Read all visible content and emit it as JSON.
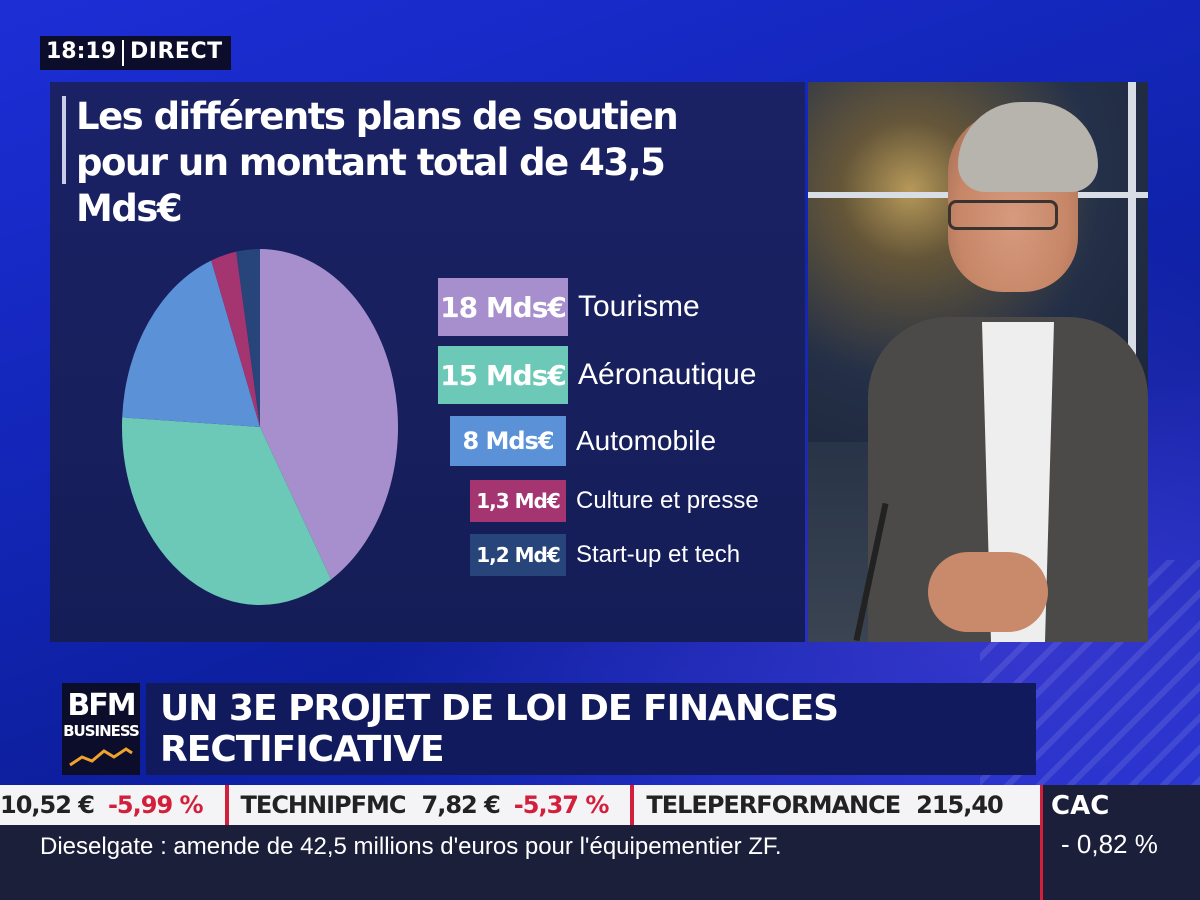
{
  "broadcast": {
    "time": "18:19",
    "live_label": "DIRECT"
  },
  "graphic": {
    "title_line1": "Les différents plans de soutien",
    "title_line2": "pour un montant total de 43,5 Mds€"
  },
  "chart_data": {
    "type": "pie",
    "title": "Les différents plans de soutien pour un montant total de 43,5 Mds€",
    "total": 43.5,
    "unit": "Mds€",
    "slices": [
      {
        "label": "Tourisme",
        "value": 18,
        "value_label": "18 Mds€",
        "color": "#a78fcd"
      },
      {
        "label": "Aéronautique",
        "value": 15,
        "value_label": "15 Mds€",
        "color": "#6cc9b8"
      },
      {
        "label": "Automobile",
        "value": 8,
        "value_label": "8 Mds€",
        "color": "#5b91d6"
      },
      {
        "label": "Culture et presse",
        "value": 1.3,
        "value_label": "1,3 Md€",
        "color": "#a43570"
      },
      {
        "label": "Start-up et tech",
        "value": 1.2,
        "value_label": "1,2 Md€",
        "color": "#27457a"
      }
    ]
  },
  "channel": {
    "logo_line1": "BFM",
    "logo_line2": "BUSINESS"
  },
  "headline": "UN 3E PROJET DE LOI DE FINANCES RECTIFICATIVE",
  "ticker": [
    {
      "name": "",
      "price": "10,52 €",
      "change": "-5,99 %"
    },
    {
      "name": "TECHNIPFMC",
      "price": "7,82 €",
      "change": "-5,37 %"
    },
    {
      "name": "TELEPERFORMANCE",
      "price": "215,40",
      "change": ""
    }
  ],
  "news_text": "Dieselgate : amende de 42,5 millions d'euros pour l'équipementier ZF.",
  "index": {
    "name": "CAC",
    "change": "- 0,82 %"
  },
  "colors": {
    "accent_red": "#d21f3c",
    "panel_bg": "#1a2265",
    "brand_blue": "#1d2ed6"
  }
}
